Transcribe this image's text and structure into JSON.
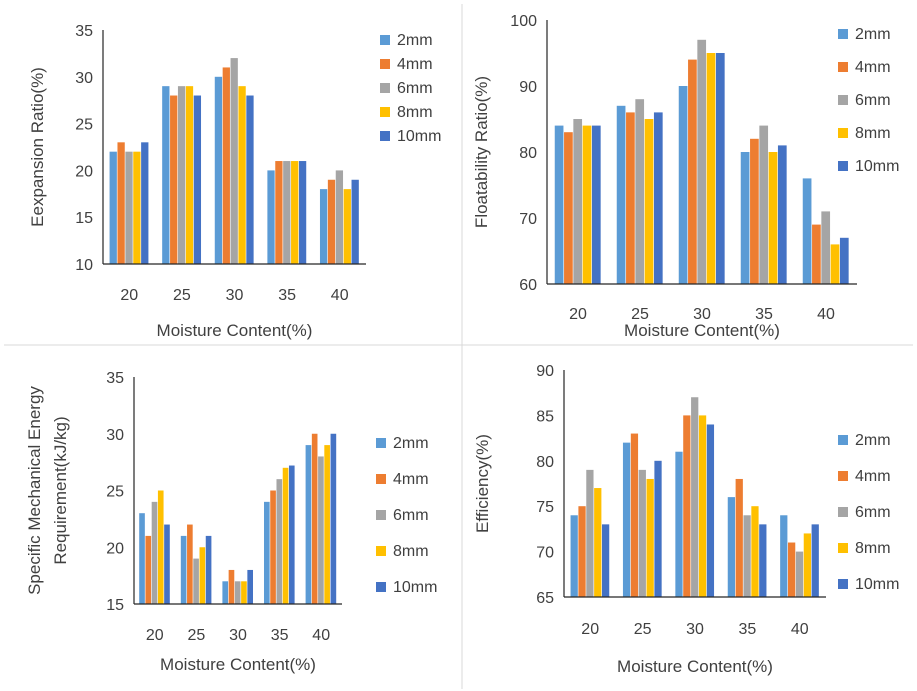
{
  "chart_data": [
    {
      "type": "bar",
      "xlabel": "Moisture Content(%)",
      "ylabel": "Eexpansion Ratio(%)",
      "ylim": [
        10,
        35
      ],
      "yticks": [
        10,
        15,
        20,
        25,
        30,
        35
      ],
      "categories": [
        "20",
        "25",
        "30",
        "35",
        "40"
      ],
      "legend_position": "right",
      "series": [
        {
          "name": "2mm",
          "color": "#5B9BD5",
          "values": [
            22,
            29,
            30,
            20,
            18
          ]
        },
        {
          "name": "4mm",
          "color": "#ED7D31",
          "values": [
            23,
            28,
            31,
            21,
            19
          ]
        },
        {
          "name": "6mm",
          "color": "#A5A5A5",
          "values": [
            22,
            29,
            32,
            21,
            20
          ]
        },
        {
          "name": "8mm",
          "color": "#FFC000",
          "values": [
            22,
            29,
            29,
            21,
            18
          ]
        },
        {
          "name": "10mm",
          "color": "#4472C4",
          "values": [
            23,
            28,
            28,
            21,
            19
          ]
        }
      ]
    },
    {
      "type": "bar",
      "xlabel": "Moisture Content(%)",
      "ylabel": "Floatability Ratio(%)",
      "ylim": [
        60,
        100
      ],
      "yticks": [
        60,
        70,
        80,
        90,
        100
      ],
      "categories": [
        "20",
        "25",
        "30",
        "35",
        "40"
      ],
      "legend_position": "right",
      "series": [
        {
          "name": "2mm",
          "color": "#5B9BD5",
          "values": [
            84,
            87,
            90,
            80,
            76
          ]
        },
        {
          "name": "4mm",
          "color": "#ED7D31",
          "values": [
            83,
            86,
            94,
            82,
            69
          ]
        },
        {
          "name": "6mm",
          "color": "#A5A5A5",
          "values": [
            85,
            88,
            97,
            84,
            71
          ]
        },
        {
          "name": "8mm",
          "color": "#FFC000",
          "values": [
            84,
            85,
            95,
            80,
            66
          ]
        },
        {
          "name": "10mm",
          "color": "#4472C4",
          "values": [
            84,
            86,
            95,
            81,
            67
          ]
        }
      ]
    },
    {
      "type": "bar",
      "xlabel": "Moisture Content(%)",
      "ylabel": "Specific Mechanical Energy Requirement(kJ/kg)",
      "ylabel_lines": [
        "Specific Mechanical Energy",
        "Requirement(kJ/kg)"
      ],
      "ylim": [
        15,
        35
      ],
      "yticks": [
        15,
        20,
        25,
        30,
        35
      ],
      "categories": [
        "20",
        "25",
        "30",
        "35",
        "40"
      ],
      "legend_position": "right",
      "series": [
        {
          "name": "2mm",
          "color": "#5B9BD5",
          "values": [
            23,
            21,
            17,
            24,
            29
          ]
        },
        {
          "name": "4mm",
          "color": "#ED7D31",
          "values": [
            21,
            22,
            18,
            25,
            30
          ]
        },
        {
          "name": "6mm",
          "color": "#A5A5A5",
          "values": [
            24,
            19,
            17,
            26,
            28
          ]
        },
        {
          "name": "8mm",
          "color": "#FFC000",
          "values": [
            25,
            20,
            17,
            27,
            29
          ]
        },
        {
          "name": "10mm",
          "color": "#4472C4",
          "values": [
            22,
            21,
            18,
            27.2,
            30
          ]
        }
      ]
    },
    {
      "type": "bar",
      "xlabel": "Moisture Content(%)",
      "ylabel": "Efficiency(%)",
      "ylim": [
        65,
        90
      ],
      "yticks": [
        65,
        70,
        75,
        80,
        85,
        90
      ],
      "categories": [
        "20",
        "25",
        "30",
        "35",
        "40"
      ],
      "legend_position": "right",
      "series": [
        {
          "name": "2mm",
          "color": "#5B9BD5",
          "values": [
            74,
            82,
            81,
            76,
            74
          ]
        },
        {
          "name": "4mm",
          "color": "#ED7D31",
          "values": [
            75,
            83,
            85,
            78,
            71
          ]
        },
        {
          "name": "6mm",
          "color": "#A5A5A5",
          "values": [
            79,
            79,
            87,
            74,
            70
          ]
        },
        {
          "name": "8mm",
          "color": "#FFC000",
          "values": [
            77,
            78,
            85,
            75,
            72
          ]
        },
        {
          "name": "10mm",
          "color": "#4472C4",
          "values": [
            73,
            80,
            84,
            73,
            73
          ]
        }
      ]
    }
  ]
}
